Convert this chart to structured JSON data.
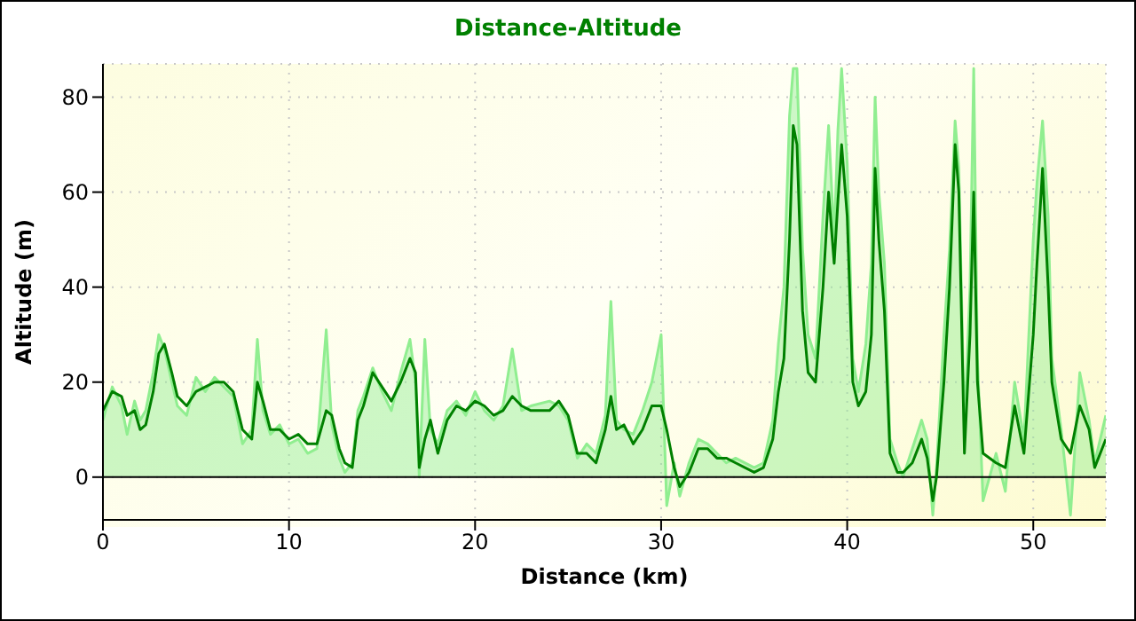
{
  "chart_data": {
    "type": "line",
    "title": "Distance-Altitude",
    "xlabel": "Distance (km)",
    "ylabel": "Altitude (m)",
    "x": [
      0,
      0.5,
      1,
      1.3,
      1.7,
      2,
      2.3,
      2.7,
      3,
      3.3,
      3.7,
      4,
      4.5,
      5,
      5.5,
      6,
      6.5,
      7,
      7.5,
      8,
      8.3,
      8.6,
      9,
      9.5,
      10,
      10.5,
      11,
      11.5,
      12,
      12.3,
      12.7,
      13,
      13.4,
      13.7,
      14,
      14.5,
      15,
      15.5,
      16,
      16.5,
      16.8,
      17,
      17.3,
      17.6,
      18,
      18.5,
      19,
      19.5,
      20,
      20.5,
      21,
      21.5,
      22,
      22.5,
      23,
      24,
      24.5,
      25,
      25.5,
      26,
      26.5,
      27,
      27.3,
      27.6,
      28,
      28.5,
      29,
      29.5,
      30,
      30.3,
      30.7,
      31,
      31.5,
      32,
      32.5,
      33,
      33.5,
      34,
      35,
      35.5,
      36,
      36.3,
      36.6,
      36.9,
      37.1,
      37.3,
      37.6,
      37.9,
      38.3,
      38.7,
      39,
      39.3,
      39.5,
      39.7,
      40,
      40.3,
      40.6,
      41,
      41.3,
      41.5,
      41.7,
      42,
      42.3,
      42.7,
      43,
      43.5,
      44,
      44.3,
      44.6,
      44.8,
      45.2,
      45.5,
      45.8,
      46,
      46.3,
      46.6,
      46.8,
      47,
      47.3,
      48,
      48.5,
      49,
      49.5,
      50,
      50.2,
      50.5,
      50.8,
      51,
      51.5,
      52,
      52.5,
      53,
      53.3,
      53.9
    ],
    "series": [
      {
        "type": "area",
        "color": "#90ee90",
        "values": [
          12,
          19,
          15,
          9,
          16,
          12,
          14,
          22,
          30,
          27,
          20,
          15,
          13,
          21,
          18,
          21,
          19,
          17,
          7,
          10,
          29,
          14,
          9,
          11,
          7,
          8,
          5,
          6,
          31,
          11,
          4,
          1,
          3,
          14,
          17,
          23,
          18,
          14,
          22,
          29,
          20,
          0,
          29,
          10,
          7,
          14,
          16,
          13,
          18,
          14,
          12,
          15,
          27,
          14,
          15,
          16,
          15,
          12,
          4,
          7,
          5,
          13,
          37,
          12,
          10,
          9,
          14,
          20,
          30,
          -6,
          3,
          -4,
          3,
          8,
          7,
          5,
          3,
          4,
          2,
          3,
          12,
          28,
          40,
          76,
          86,
          86,
          48,
          30,
          25,
          55,
          74,
          50,
          73,
          86,
          66,
          25,
          18,
          28,
          45,
          80,
          60,
          45,
          8,
          3,
          0,
          6,
          12,
          8,
          -8,
          2,
          30,
          48,
          75,
          65,
          10,
          40,
          86,
          25,
          -5,
          5,
          -3,
          20,
          8,
          50,
          62,
          75,
          55,
          25,
          10,
          -8,
          22,
          12,
          3,
          13
        ]
      },
      {
        "color": "#008000",
        "values": [
          14,
          18,
          17,
          13,
          14,
          10,
          11,
          18,
          26,
          28,
          22,
          17,
          15,
          18,
          19,
          20,
          20,
          18,
          10,
          8,
          20,
          16,
          10,
          10,
          8,
          9,
          7,
          7,
          14,
          13,
          6,
          3,
          2,
          12,
          15,
          22,
          19,
          16,
          20,
          25,
          22,
          2,
          8,
          12,
          5,
          12,
          15,
          14,
          16,
          15,
          13,
          14,
          17,
          15,
          14,
          14,
          16,
          13,
          5,
          5,
          3,
          10,
          17,
          10,
          11,
          7,
          10,
          15,
          15,
          10,
          2,
          -2,
          1,
          6,
          6,
          4,
          4,
          3,
          1,
          2,
          8,
          18,
          25,
          50,
          74,
          70,
          35,
          22,
          20,
          40,
          60,
          45,
          58,
          70,
          55,
          20,
          15,
          18,
          30,
          65,
          50,
          35,
          5,
          1,
          1,
          3,
          8,
          4,
          -5,
          0,
          20,
          40,
          70,
          60,
          5,
          30,
          60,
          20,
          5,
          3,
          2,
          15,
          5,
          30,
          45,
          65,
          40,
          20,
          8,
          5,
          15,
          10,
          2,
          8
        ]
      }
    ],
    "xlim": [
      0,
      53.9
    ],
    "xticks": [
      0,
      10,
      20,
      30,
      40,
      50
    ],
    "ylim": [
      -9,
      87
    ],
    "yticks": [
      0,
      20,
      40,
      60,
      80
    ],
    "ref_lines": [
      {
        "axis": "y",
        "value": 0,
        "color": "#000000"
      }
    ],
    "grid": true,
    "marker": "none",
    "line_style": "solid",
    "legend": false
  }
}
